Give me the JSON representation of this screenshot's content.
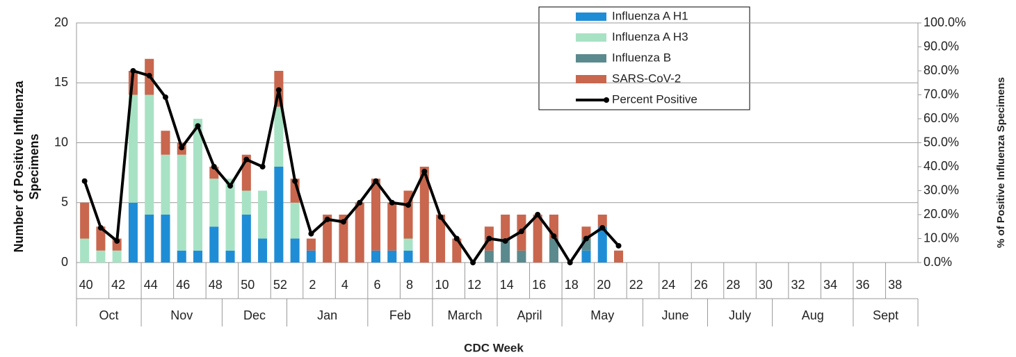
{
  "chart_data": {
    "type": "bar",
    "ylabel": "Number of Positive Influenza Specimens",
    "y2label": "% of Positive Influenza Specimens",
    "xlabel": "CDC Week",
    "categories": [
      "40",
      null,
      "42",
      null,
      "44",
      null,
      "46",
      null,
      "48",
      null,
      "50",
      null,
      "52",
      null,
      "2",
      null,
      "4",
      null,
      "6",
      null,
      "8",
      null,
      "10",
      null,
      "12",
      null,
      "14",
      null,
      "16",
      null,
      "18",
      null,
      "20",
      null,
      "22",
      null,
      "24",
      null,
      "26",
      null,
      "28",
      null,
      "30",
      null,
      "32",
      null,
      "34",
      null,
      "36",
      null,
      "38",
      null
    ],
    "months": [
      {
        "name": "Oct",
        "weeks": 4
      },
      {
        "name": "Nov",
        "weeks": 5
      },
      {
        "name": "Dec",
        "weeks": 4
      },
      {
        "name": "Jan",
        "weeks": 5
      },
      {
        "name": "Feb",
        "weeks": 4
      },
      {
        "name": "March",
        "weeks": 4
      },
      {
        "name": "April",
        "weeks": 4
      },
      {
        "name": "May",
        "weeks": 5
      },
      {
        "name": "June",
        "weeks": 4
      },
      {
        "name": "July",
        "weeks": 4
      },
      {
        "name": "Aug",
        "weeks": 5
      },
      {
        "name": "Sept",
        "weeks": 4
      }
    ],
    "series": [
      {
        "name": "Influenza A H1",
        "color": "#1f8dd6",
        "values": [
          0,
          0,
          0,
          5,
          4,
          4,
          1,
          1,
          3,
          1,
          4,
          2,
          8,
          2,
          1,
          0,
          0,
          0,
          1,
          1,
          1,
          0,
          0,
          0,
          0,
          0,
          0,
          0,
          0,
          0,
          0,
          1,
          3,
          0,
          null,
          null,
          null,
          null,
          null,
          null,
          null,
          null,
          null,
          null,
          null,
          null,
          null,
          null,
          null,
          null,
          null,
          null
        ]
      },
      {
        "name": "Influenza A H3",
        "color": "#a8e2c4",
        "values": [
          2,
          1,
          1,
          9,
          10,
          5,
          8,
          11,
          4,
          6,
          2,
          4,
          5,
          3,
          0,
          0,
          0,
          0,
          0,
          0,
          1,
          0,
          0,
          0,
          0,
          0,
          0,
          0,
          0,
          0,
          0,
          0,
          0,
          0,
          null,
          null,
          null,
          null,
          null,
          null,
          null,
          null,
          null,
          null,
          null,
          null,
          null,
          null,
          null,
          null,
          null,
          null
        ]
      },
      {
        "name": "Influenza B",
        "color": "#5b8a8e",
        "values": [
          0,
          0,
          0,
          0,
          0,
          0,
          0,
          0,
          0,
          0,
          0,
          0,
          0,
          0,
          0,
          0,
          0,
          0,
          0,
          0,
          0,
          0,
          0,
          0,
          0,
          1,
          2,
          1,
          0,
          2,
          0,
          1,
          0,
          0,
          null,
          null,
          null,
          null,
          null,
          null,
          null,
          null,
          null,
          null,
          null,
          null,
          null,
          null,
          null,
          null,
          null,
          null
        ]
      },
      {
        "name": "SARS-CoV-2",
        "color": "#c8674e",
        "values": [
          3,
          2,
          1,
          2,
          3,
          2,
          1,
          0,
          1,
          0,
          3,
          0,
          3,
          2,
          1,
          4,
          4,
          5,
          6,
          4,
          4,
          8,
          4,
          2,
          0,
          2,
          2,
          3,
          4,
          2,
          0,
          1,
          1,
          1,
          null,
          null,
          null,
          null,
          null,
          null,
          null,
          null,
          null,
          null,
          null,
          null,
          null,
          null,
          null,
          null,
          null,
          null
        ]
      },
      {
        "name": "Percent Positive",
        "type": "line",
        "axis": "y2",
        "color": "#000000",
        "values": [
          34,
          14.5,
          9,
          80,
          78,
          69,
          48,
          57,
          40,
          32,
          43,
          40,
          72,
          34,
          12,
          18,
          17,
          25,
          34,
          25,
          24,
          38,
          19,
          10,
          0,
          10,
          9,
          13,
          20,
          11,
          0,
          10,
          14.5,
          7,
          null,
          null,
          null,
          null,
          null,
          null,
          null,
          null,
          null,
          null,
          null,
          null,
          null,
          null,
          null,
          null,
          null,
          null
        ]
      }
    ],
    "ylim": [
      0,
      20
    ],
    "yticks": [
      0,
      5,
      10,
      15,
      20
    ],
    "y2lim": [
      0,
      100
    ],
    "y2ticks": [
      {
        "value": 0,
        "label": "0.0%"
      },
      {
        "value": 10,
        "label": "10.0%"
      },
      {
        "value": 20,
        "label": "20.0%"
      },
      {
        "value": 30,
        "label": "30.0%"
      },
      {
        "value": 40,
        "label": "40.0%"
      },
      {
        "value": 50,
        "label": "50.0%"
      },
      {
        "value": 60,
        "label": "60.0%"
      },
      {
        "value": 70,
        "label": "70.0%"
      },
      {
        "value": 80,
        "label": "80.0%"
      },
      {
        "value": 90,
        "label": "90.0%"
      },
      {
        "value": 100,
        "label": "100.0%"
      }
    ],
    "grid": true,
    "legend": "top"
  }
}
